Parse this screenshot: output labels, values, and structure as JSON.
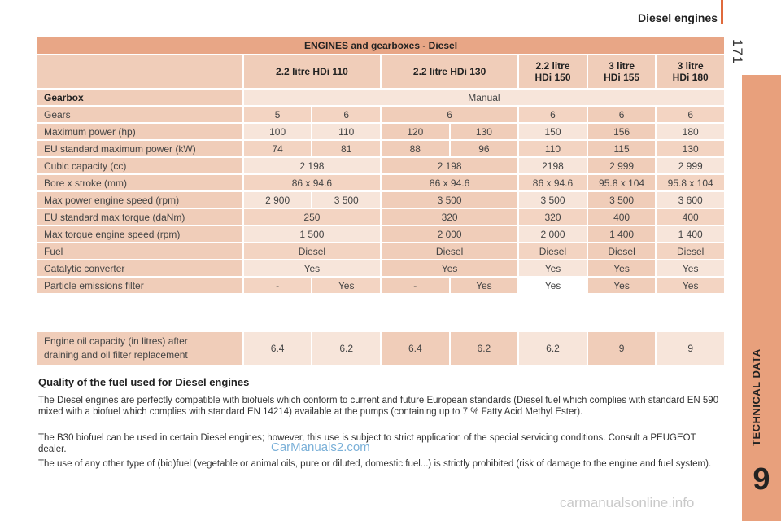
{
  "header": {
    "title": "Diesel engines",
    "page_number": "171"
  },
  "side_tab": {
    "label": "TECHNICAL DATA",
    "number": "9"
  },
  "table": {
    "title": "ENGINES and gearboxes - Diesel",
    "columns": [
      "2.2 litre HDi 110",
      "2.2 litre HDi 130",
      "2.2 litre HDi 150",
      "3 litre HDi 155",
      "3 litre HDi 180"
    ],
    "columns_split": [
      [
        "2.2 litre",
        "HDi 150"
      ],
      [
        "3 litre",
        "HDi 155"
      ],
      [
        "3 litre",
        "HDi 180"
      ]
    ],
    "gearbox_label": "Gearbox",
    "gearbox_value": "Manual",
    "rows": {
      "gears": [
        "Gears",
        "5",
        "6",
        "6",
        "6",
        "6",
        "6"
      ],
      "max_power": [
        "Maximum power (hp)",
        "100",
        "110",
        "120",
        "130",
        "150",
        "156",
        "180"
      ],
      "eu_power": [
        "EU standard maximum power (kW)",
        "74",
        "81",
        "88",
        "96",
        "110",
        "115",
        "130"
      ],
      "cubic": [
        "Cubic capacity (cc)",
        "2 198",
        "2 198",
        "2198",
        "2 999",
        "2 999"
      ],
      "bore": [
        "Bore x stroke (mm)",
        "86 x 94.6",
        "86 x 94.6",
        "86 x 94.6",
        "95.8 x 104",
        "95.8 x 104"
      ],
      "max_power_speed": [
        "Max power engine speed (rpm)",
        "2 900",
        "3 500",
        "3 500",
        "3 500",
        "3 500",
        "3 600"
      ],
      "eu_torque": [
        "EU standard max torque (daNm)",
        "250",
        "320",
        "320",
        "400",
        "400"
      ],
      "torque_speed": [
        "Max torque engine speed (rpm)",
        "1 500",
        "2 000",
        "2 000",
        "1 400",
        "1 400"
      ],
      "fuel": [
        "Fuel",
        "Diesel",
        "Diesel",
        "Diesel",
        "Diesel",
        "Diesel"
      ],
      "catalytic": [
        "Catalytic converter",
        "Yes",
        "Yes",
        "Yes",
        "Yes",
        "Yes"
      ],
      "particle": [
        "Particle emissions filter",
        "-",
        "Yes",
        "-",
        "Yes",
        "Yes",
        "Yes",
        "Yes"
      ]
    },
    "oil": {
      "label_line1": "Engine oil capacity (in litres) after",
      "label_line2": "draining and oil filter replacement",
      "values": [
        "6.4",
        "6.2",
        "6.4",
        "6.2",
        "6.2",
        "9",
        "9"
      ]
    }
  },
  "section": {
    "title": "Quality of the fuel used for Diesel engines",
    "paragraphs": [
      "The Diesel engines are perfectly compatible with biofuels which conform to current and future European standards (Diesel fuel which complies with standard EN 590 mixed with a biofuel which complies with standard EN 14214) available at the pumps (containing up to 7 % Fatty Acid Methyl Ester).",
      "The B30 biofuel can be used in certain Diesel engines; however, this use is subject to strict application of the special servicing conditions. Consult a PEUGEOT dealer.",
      "The use of any other type of (bio)fuel (vegetable or animal oils, pure or diluted, domestic fuel...) is strictly prohibited (risk of damage to the engine and fuel system)."
    ]
  },
  "watermarks": {
    "site": "CarManuals2.com",
    "footer": "carmanualsonline.info"
  }
}
